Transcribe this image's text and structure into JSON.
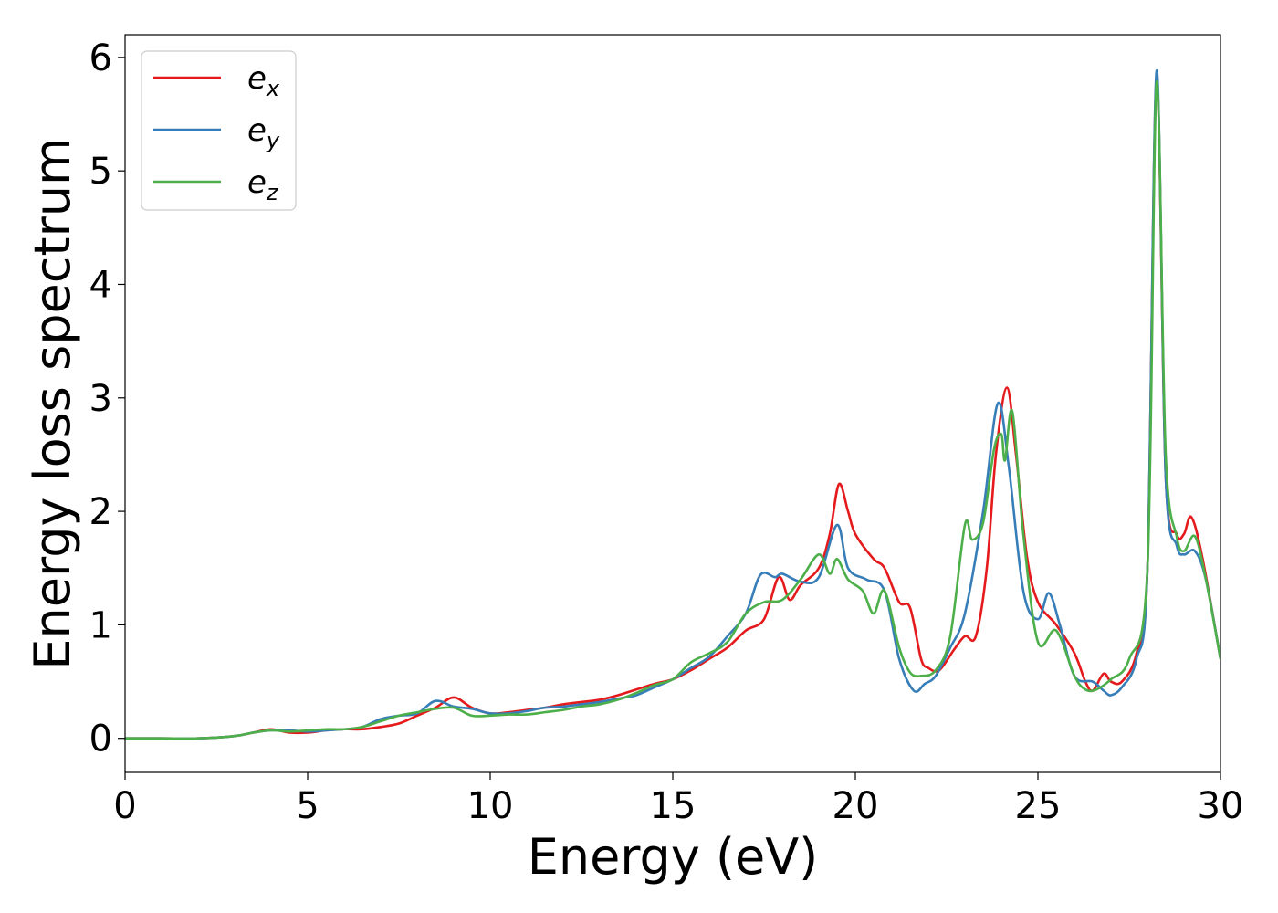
{
  "chart_data": {
    "type": "line",
    "title": "",
    "xlabel": "Energy (eV)",
    "ylabel": "Energy loss spectrum",
    "xlim": [
      0,
      30
    ],
    "ylim": [
      -0.3,
      6.2
    ],
    "xticks": [
      0,
      5,
      10,
      15,
      20,
      25,
      30
    ],
    "yticks": [
      0,
      1,
      2,
      3,
      4,
      5,
      6
    ],
    "grid": false,
    "legend_position": "top-left",
    "series": [
      {
        "name": "e",
        "subscript": "x",
        "color": "#e41a1c",
        "points": [
          [
            0,
            0.0
          ],
          [
            1,
            0.0
          ],
          [
            2,
            0.0
          ],
          [
            3,
            0.02
          ],
          [
            3.5,
            0.05
          ],
          [
            4,
            0.08
          ],
          [
            4.5,
            0.05
          ],
          [
            5,
            0.05
          ],
          [
            5.5,
            0.07
          ],
          [
            6,
            0.08
          ],
          [
            6.5,
            0.08
          ],
          [
            7,
            0.1
          ],
          [
            7.5,
            0.13
          ],
          [
            8,
            0.2
          ],
          [
            8.5,
            0.27
          ],
          [
            9,
            0.36
          ],
          [
            9.5,
            0.27
          ],
          [
            10,
            0.22
          ],
          [
            10.5,
            0.23
          ],
          [
            11,
            0.25
          ],
          [
            11.5,
            0.27
          ],
          [
            12,
            0.3
          ],
          [
            12.5,
            0.32
          ],
          [
            13,
            0.34
          ],
          [
            13.5,
            0.38
          ],
          [
            14,
            0.43
          ],
          [
            14.5,
            0.48
          ],
          [
            15,
            0.52
          ],
          [
            15.5,
            0.6
          ],
          [
            16,
            0.7
          ],
          [
            16.5,
            0.8
          ],
          [
            17,
            0.95
          ],
          [
            17.5,
            1.05
          ],
          [
            17.9,
            1.42
          ],
          [
            18.2,
            1.22
          ],
          [
            18.5,
            1.35
          ],
          [
            19,
            1.5
          ],
          [
            19.3,
            1.8
          ],
          [
            19.55,
            2.24
          ],
          [
            19.8,
            2.0
          ],
          [
            20,
            1.8
          ],
          [
            20.5,
            1.58
          ],
          [
            20.8,
            1.5
          ],
          [
            21.2,
            1.2
          ],
          [
            21.5,
            1.15
          ],
          [
            21.8,
            0.7
          ],
          [
            22,
            0.62
          ],
          [
            22.3,
            0.6
          ],
          [
            22.7,
            0.78
          ],
          [
            23,
            0.9
          ],
          [
            23.3,
            0.9
          ],
          [
            23.6,
            1.5
          ],
          [
            23.85,
            2.5
          ],
          [
            24.15,
            3.09
          ],
          [
            24.4,
            2.5
          ],
          [
            24.7,
            1.6
          ],
          [
            25,
            1.2
          ],
          [
            25.5,
            1.0
          ],
          [
            26,
            0.75
          ],
          [
            26.3,
            0.5
          ],
          [
            26.5,
            0.42
          ],
          [
            26.8,
            0.57
          ],
          [
            27,
            0.5
          ],
          [
            27.3,
            0.5
          ],
          [
            27.7,
            0.75
          ],
          [
            28,
            1.5
          ],
          [
            28.25,
            5.82
          ],
          [
            28.5,
            2.3
          ],
          [
            28.8,
            1.8
          ],
          [
            29,
            1.8
          ],
          [
            29.2,
            1.95
          ],
          [
            29.5,
            1.6
          ],
          [
            30,
            0.7
          ]
        ]
      },
      {
        "name": "e",
        "subscript": "y",
        "color": "#377eb8",
        "points": [
          [
            0,
            0.0
          ],
          [
            1,
            0.0
          ],
          [
            2,
            0.0
          ],
          [
            3,
            0.02
          ],
          [
            3.5,
            0.05
          ],
          [
            4,
            0.07
          ],
          [
            4.5,
            0.07
          ],
          [
            5,
            0.06
          ],
          [
            5.5,
            0.07
          ],
          [
            6,
            0.08
          ],
          [
            6.5,
            0.1
          ],
          [
            7,
            0.17
          ],
          [
            7.5,
            0.2
          ],
          [
            8,
            0.22
          ],
          [
            8.5,
            0.33
          ],
          [
            9,
            0.28
          ],
          [
            9.5,
            0.26
          ],
          [
            10,
            0.22
          ],
          [
            10.5,
            0.22
          ],
          [
            11,
            0.24
          ],
          [
            11.5,
            0.27
          ],
          [
            12,
            0.28
          ],
          [
            12.5,
            0.3
          ],
          [
            13,
            0.32
          ],
          [
            13.5,
            0.35
          ],
          [
            14,
            0.38
          ],
          [
            14.5,
            0.45
          ],
          [
            15,
            0.52
          ],
          [
            15.5,
            0.62
          ],
          [
            16,
            0.72
          ],
          [
            16.5,
            0.9
          ],
          [
            17,
            1.1
          ],
          [
            17.4,
            1.44
          ],
          [
            17.8,
            1.42
          ],
          [
            18,
            1.45
          ],
          [
            18.5,
            1.38
          ],
          [
            19,
            1.42
          ],
          [
            19.5,
            1.88
          ],
          [
            19.8,
            1.5
          ],
          [
            20.3,
            1.4
          ],
          [
            20.8,
            1.3
          ],
          [
            21.2,
            0.7
          ],
          [
            21.6,
            0.42
          ],
          [
            21.9,
            0.48
          ],
          [
            22.2,
            0.55
          ],
          [
            22.6,
            0.8
          ],
          [
            23,
            1.1
          ],
          [
            23.5,
            2.0
          ],
          [
            23.9,
            2.95
          ],
          [
            24.2,
            2.4
          ],
          [
            24.6,
            1.3
          ],
          [
            25,
            1.05
          ],
          [
            25.3,
            1.28
          ],
          [
            25.6,
            1.0
          ],
          [
            26,
            0.55
          ],
          [
            26.5,
            0.5
          ],
          [
            26.8,
            0.42
          ],
          [
            27,
            0.38
          ],
          [
            27.3,
            0.45
          ],
          [
            27.7,
            0.7
          ],
          [
            28,
            1.5
          ],
          [
            28.25,
            5.88
          ],
          [
            28.5,
            2.3
          ],
          [
            28.8,
            1.7
          ],
          [
            29,
            1.62
          ],
          [
            29.3,
            1.65
          ],
          [
            29.6,
            1.4
          ],
          [
            30,
            0.7
          ]
        ]
      },
      {
        "name": "e",
        "subscript": "z",
        "color": "#4daf4a",
        "points": [
          [
            0,
            0.0
          ],
          [
            1,
            0.0
          ],
          [
            2,
            0.0
          ],
          [
            3,
            0.02
          ],
          [
            3.5,
            0.05
          ],
          [
            4,
            0.07
          ],
          [
            4.5,
            0.06
          ],
          [
            5,
            0.07
          ],
          [
            5.5,
            0.08
          ],
          [
            6,
            0.08
          ],
          [
            6.5,
            0.1
          ],
          [
            7,
            0.15
          ],
          [
            7.5,
            0.2
          ],
          [
            8,
            0.23
          ],
          [
            8.5,
            0.26
          ],
          [
            9,
            0.27
          ],
          [
            9.5,
            0.2
          ],
          [
            10,
            0.2
          ],
          [
            10.5,
            0.21
          ],
          [
            11,
            0.21
          ],
          [
            11.5,
            0.23
          ],
          [
            12,
            0.25
          ],
          [
            12.5,
            0.28
          ],
          [
            13,
            0.3
          ],
          [
            13.5,
            0.34
          ],
          [
            14,
            0.4
          ],
          [
            14.5,
            0.47
          ],
          [
            15,
            0.52
          ],
          [
            15.5,
            0.67
          ],
          [
            16,
            0.75
          ],
          [
            16.5,
            0.85
          ],
          [
            17,
            1.1
          ],
          [
            17.5,
            1.2
          ],
          [
            18,
            1.22
          ],
          [
            18.5,
            1.4
          ],
          [
            19,
            1.62
          ],
          [
            19.3,
            1.45
          ],
          [
            19.5,
            1.58
          ],
          [
            19.8,
            1.4
          ],
          [
            20.2,
            1.3
          ],
          [
            20.5,
            1.1
          ],
          [
            20.8,
            1.3
          ],
          [
            21.2,
            0.8
          ],
          [
            21.5,
            0.58
          ],
          [
            21.8,
            0.55
          ],
          [
            22.2,
            0.6
          ],
          [
            22.6,
            0.9
          ],
          [
            23,
            1.88
          ],
          [
            23.2,
            1.75
          ],
          [
            23.5,
            1.9
          ],
          [
            23.8,
            2.55
          ],
          [
            24,
            2.68
          ],
          [
            24.1,
            2.45
          ],
          [
            24.3,
            2.88
          ],
          [
            24.6,
            1.8
          ],
          [
            25,
            0.85
          ],
          [
            25.5,
            0.95
          ],
          [
            26,
            0.55
          ],
          [
            26.3,
            0.43
          ],
          [
            26.6,
            0.43
          ],
          [
            27,
            0.52
          ],
          [
            27.5,
            0.7
          ],
          [
            28,
            1.5
          ],
          [
            28.25,
            5.78
          ],
          [
            28.5,
            2.5
          ],
          [
            28.8,
            1.78
          ],
          [
            29,
            1.65
          ],
          [
            29.3,
            1.78
          ],
          [
            29.6,
            1.4
          ],
          [
            30,
            0.7
          ]
        ]
      }
    ]
  }
}
